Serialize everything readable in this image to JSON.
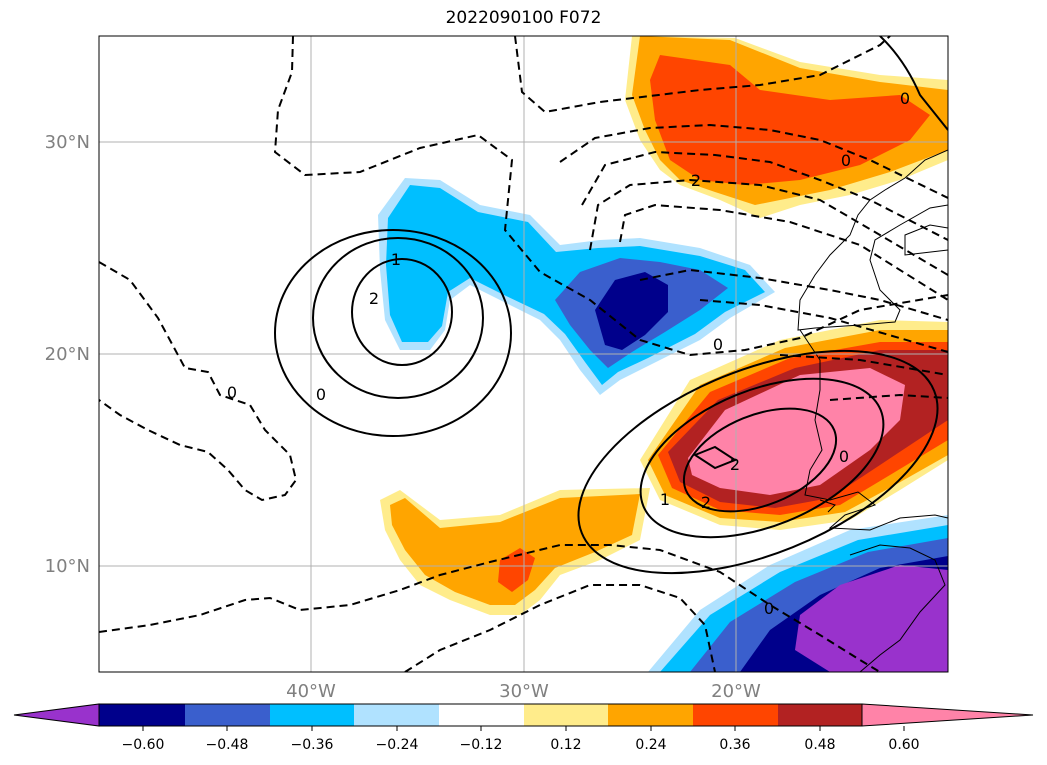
{
  "title": "2022090100 F072",
  "map": {
    "lat_labels": [
      "30°N",
      "20°N",
      "10°N"
    ],
    "lon_labels": [
      "40°W",
      "30°W",
      "20°W"
    ],
    "grid_color": "#b0b0b0"
  },
  "colorbar": {
    "ticks": [
      "−0.60",
      "−0.48",
      "−0.36",
      "−0.24",
      "−0.12",
      "0.12",
      "0.24",
      "0.36",
      "0.48",
      "0.60"
    ],
    "colors": [
      "#9932cc",
      "#00008b",
      "#3a5fcd",
      "#00bfff",
      "#b0e2ff",
      "#ffffff",
      "#ffec8b",
      "#ffa500",
      "#ff4500",
      "#b22222",
      "#ff83a8"
    ]
  },
  "contour_labels": [
    "0",
    "1",
    "2",
    "0",
    "0",
    "2",
    "0",
    "1",
    "2",
    "2",
    "0",
    "0",
    "0"
  ]
}
